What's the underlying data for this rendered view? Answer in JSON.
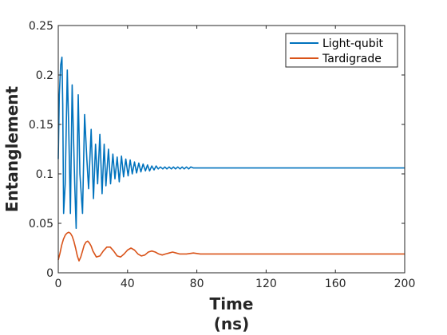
{
  "chart_data": {
    "type": "line",
    "title": "",
    "xlabel": [
      "Time",
      "(ns)"
    ],
    "ylabel": "Entanglement",
    "xlim": [
      0,
      200
    ],
    "ylim": [
      0,
      0.25
    ],
    "xticks": [
      "0",
      "40",
      "80",
      "120",
      "160",
      "200"
    ],
    "yticks": [
      "0",
      "0.05",
      "0.1",
      "0.15",
      "0.2",
      "0.25"
    ],
    "grid": false,
    "legend_position": "top-right",
    "series": [
      {
        "name": "Light-qubit",
        "color": "#0072BD",
        "steady_value": 0.106,
        "x": [
          0,
          0.6,
          1.4,
          2.1,
          2.6,
          3.1,
          4.0,
          5.2,
          6.0,
          7.0,
          8.0,
          9.5,
          10.3,
          11.5,
          12.5,
          14.0,
          15.2,
          16.5,
          17.5,
          19.0,
          20.3,
          21.5,
          22.7,
          24.0,
          25.3,
          26.5,
          27.5,
          29.0,
          30.2,
          31.5,
          32.7,
          34.0,
          35.2,
          36.5,
          37.7,
          39.0,
          40.3,
          41.5,
          42.7,
          44.0,
          45.2,
          46.5,
          47.7,
          49.0,
          50.3,
          51.5,
          52.7,
          54.0,
          55.3,
          56.5,
          57.7,
          59.0,
          60.3,
          61.5,
          62.7,
          64.0,
          65.3,
          66.5,
          67.7,
          69.0,
          70.3,
          71.5,
          72.7,
          74.0,
          75.3,
          76.5,
          78.0,
          82.0,
          86.0,
          90.0,
          94.0,
          98.0,
          102.0,
          106.0,
          200.0
        ],
        "y": [
          0.115,
          0.18,
          0.21,
          0.218,
          0.17,
          0.06,
          0.09,
          0.205,
          0.15,
          0.06,
          0.19,
          0.09,
          0.045,
          0.18,
          0.1,
          0.06,
          0.16,
          0.115,
          0.085,
          0.145,
          0.075,
          0.13,
          0.09,
          0.14,
          0.08,
          0.13,
          0.088,
          0.125,
          0.09,
          0.12,
          0.095,
          0.117,
          0.092,
          0.118,
          0.097,
          0.115,
          0.098,
          0.114,
          0.1,
          0.112,
          0.101,
          0.111,
          0.102,
          0.11,
          0.103,
          0.109,
          0.103,
          0.108,
          0.104,
          0.108,
          0.105,
          0.107,
          0.105,
          0.107,
          0.105,
          0.107,
          0.105,
          0.107,
          0.105,
          0.107,
          0.105,
          0.107,
          0.105,
          0.107,
          0.105,
          0.107,
          0.106,
          0.106,
          0.106,
          0.106,
          0.106,
          0.106,
          0.106,
          0.106,
          0.106
        ]
      },
      {
        "name": "Tardigrade",
        "color": "#D95319",
        "steady_value": 0.019,
        "x": [
          0,
          1.0,
          2.0,
          3.0,
          4.0,
          5.0,
          6.0,
          7.0,
          8.0,
          9.0,
          10.0,
          11.0,
          12.0,
          13.0,
          14.0,
          15.0,
          16.0,
          17.0,
          18.0,
          19.0,
          20.0,
          22.0,
          24.0,
          26.0,
          28.0,
          30.0,
          32.0,
          34.0,
          36.0,
          38.0,
          40.0,
          42.0,
          44.0,
          46.0,
          48.0,
          50.0,
          52.0,
          54.0,
          56.0,
          58.0,
          60.0,
          62.0,
          64.0,
          66.0,
          68.0,
          70.0,
          74.0,
          78.0,
          82.0,
          86.0,
          90.0,
          100.0,
          120.0,
          140.0,
          160.0,
          180.0,
          200.0
        ],
        "y": [
          0.013,
          0.02,
          0.028,
          0.034,
          0.038,
          0.04,
          0.041,
          0.04,
          0.037,
          0.032,
          0.025,
          0.017,
          0.012,
          0.016,
          0.022,
          0.028,
          0.031,
          0.032,
          0.03,
          0.027,
          0.022,
          0.016,
          0.017,
          0.022,
          0.026,
          0.026,
          0.022,
          0.017,
          0.016,
          0.019,
          0.023,
          0.025,
          0.023,
          0.019,
          0.017,
          0.018,
          0.021,
          0.022,
          0.021,
          0.019,
          0.018,
          0.019,
          0.02,
          0.021,
          0.02,
          0.019,
          0.019,
          0.02,
          0.019,
          0.019,
          0.019,
          0.019,
          0.019,
          0.019,
          0.019,
          0.019,
          0.019
        ]
      }
    ]
  }
}
